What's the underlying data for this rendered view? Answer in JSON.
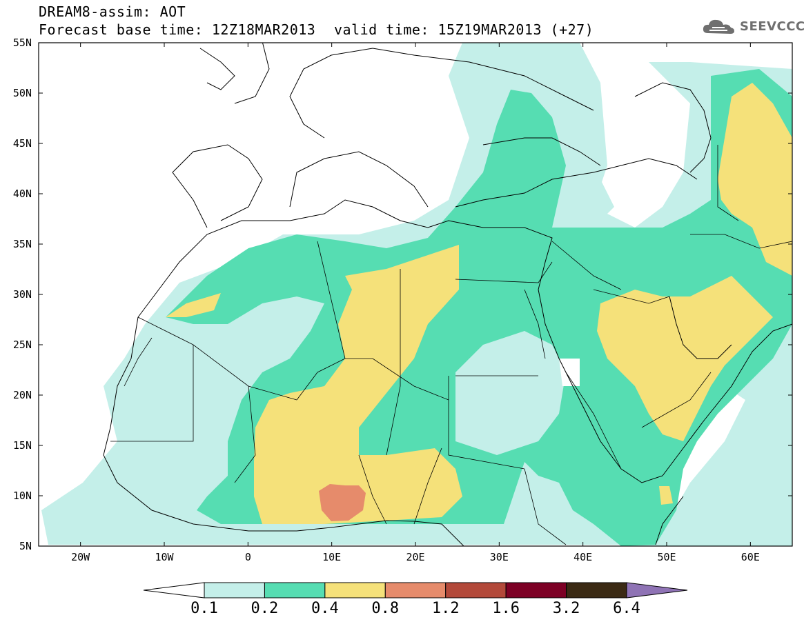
{
  "header": {
    "title_line1": "DREAM8-assim: AOT",
    "title_line2": "Forecast base time: 12Z18MAR2013",
    "valid_time": "valid time: 15Z19MAR2013 (+27)",
    "logo_text": "SEEVCCC",
    "logo_icon": "cloud-icon"
  },
  "map": {
    "lat_labels": [
      "55N",
      "50N",
      "45N",
      "40N",
      "35N",
      "30N",
      "25N",
      "20N",
      "15N",
      "10N",
      "5N"
    ],
    "lon_labels": [
      "20W",
      "10W",
      "0",
      "10E",
      "20E",
      "30E",
      "40E",
      "50E",
      "60E"
    ],
    "lat_range": [
      5,
      55
    ],
    "lon_range": [
      -25,
      65
    ]
  },
  "colorbar": {
    "labels": [
      "0.1",
      "0.2",
      "0.4",
      "0.8",
      "1.2",
      "1.6",
      "3.2",
      "6.4"
    ],
    "colors": [
      "#c4efe9",
      "#56ddb2",
      "#f5e17a",
      "#e68b6b",
      "#b3493a",
      "#7d0025",
      "#3b2a14",
      "#8f73b5"
    ],
    "min_arrow_color": "#ffffff"
  }
}
